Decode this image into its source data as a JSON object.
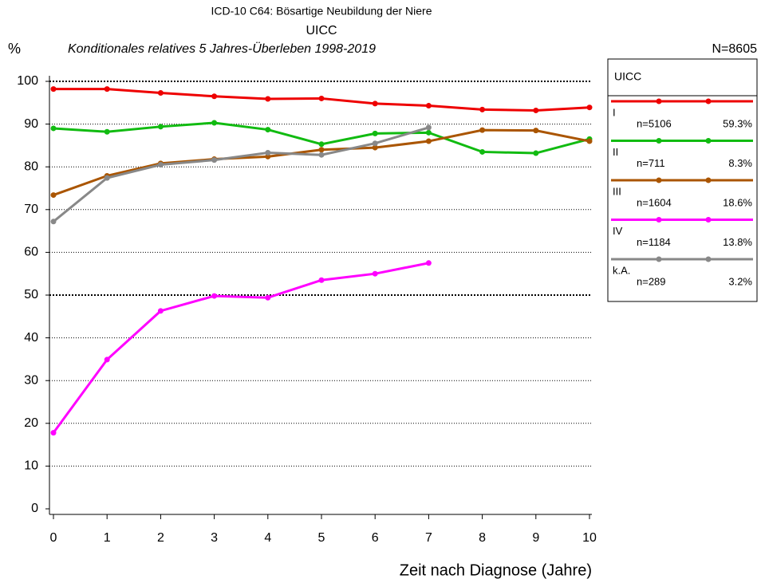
{
  "chart_data": {
    "type": "line",
    "title": "ICD-10 C64: Bösartige Neubildung der Niere",
    "subtitle": "UICC",
    "subtitle2": "Konditionales relatives 5 Jahres-Überleben 1998-2019",
    "y_label": "%",
    "total": "N=8605",
    "x_label": "Zeit nach Diagnose (Jahre)",
    "legend_title": "UICC",
    "legend": "right",
    "x": [
      0,
      1,
      2,
      3,
      4,
      5,
      6,
      7,
      8,
      9,
      10
    ],
    "xlim": [
      0,
      10
    ],
    "xticks": [
      0,
      1,
      2,
      3,
      4,
      5,
      6,
      7,
      8,
      9,
      10
    ],
    "ylim": [
      0,
      100
    ],
    "yticks": [
      0,
      10,
      20,
      30,
      40,
      50,
      60,
      70,
      80,
      90,
      100
    ],
    "grid": true,
    "series": [
      {
        "name": "I",
        "n": "n=5106",
        "share": "59.3%",
        "color": "#ee0000",
        "values": [
          98.2,
          98.2,
          97.3,
          96.5,
          95.9,
          96.0,
          94.8,
          94.3,
          93.4,
          93.2,
          93.9
        ]
      },
      {
        "name": "II",
        "n": "n=711",
        "share": "8.3%",
        "color": "#11bb11",
        "values": [
          89.0,
          88.2,
          89.4,
          90.3,
          88.7,
          85.3,
          87.8,
          88.0,
          83.5,
          83.2,
          86.5
        ]
      },
      {
        "name": "III",
        "n": "n=1604",
        "share": "18.6%",
        "color": "#aa5500",
        "values": [
          73.4,
          77.9,
          80.8,
          81.8,
          82.4,
          84.0,
          84.5,
          86.0,
          88.6,
          88.5,
          86.0
        ]
      },
      {
        "name": "IV",
        "n": "n=1184",
        "share": "13.8%",
        "color": "#ff00ff",
        "values": [
          17.8,
          34.9,
          46.3,
          49.8,
          49.4,
          53.5,
          55.0,
          57.5,
          null,
          null,
          null
        ]
      },
      {
        "name": "k.A.",
        "n": "n=289",
        "share": "3.2%",
        "color": "#888888",
        "values": [
          67.2,
          77.4,
          80.5,
          81.6,
          83.3,
          82.8,
          85.5,
          89.2,
          null,
          null,
          null
        ]
      }
    ]
  }
}
